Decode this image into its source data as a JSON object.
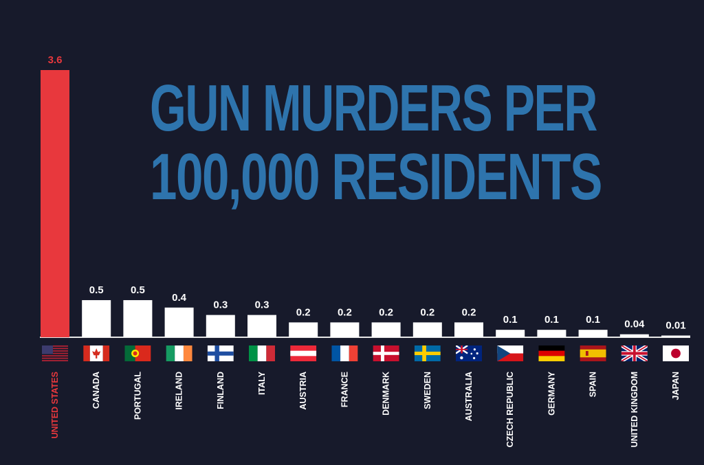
{
  "chart_data": {
    "type": "bar",
    "title": "GUN MURDERS PER 100,000 RESIDENTS",
    "title_lines": [
      "GUN MURDERS PER",
      "100,000 RESIDENTS"
    ],
    "categories": [
      "UNITED STATES",
      "CANADA",
      "PORTUGAL",
      "IRELAND",
      "FINLAND",
      "ITALY",
      "AUSTRIA",
      "FRANCE",
      "DENMARK",
      "SWEDEN",
      "AUSTRALIA",
      "CZECH REPUBLIC",
      "GERMANY",
      "SPAIN",
      "UNITED KINGDOM",
      "JAPAN"
    ],
    "values": [
      3.6,
      0.5,
      0.5,
      0.4,
      0.3,
      0.3,
      0.2,
      0.2,
      0.2,
      0.2,
      0.2,
      0.1,
      0.1,
      0.1,
      0.04,
      0.01
    ],
    "value_labels": [
      "3.6",
      "0.5",
      "0.5",
      "0.4",
      "0.3",
      "0.3",
      "0.2",
      "0.2",
      "0.2",
      "0.2",
      "0.2",
      "0.1",
      "0.1",
      "0.1",
      "0.04",
      "0.01"
    ],
    "flags": [
      "us-flag-icon",
      "canada-flag-icon",
      "portugal-flag-icon",
      "ireland-flag-icon",
      "finland-flag-icon",
      "italy-flag-icon",
      "austria-flag-icon",
      "france-flag-icon",
      "denmark-flag-icon",
      "sweden-flag-icon",
      "australia-flag-icon",
      "czech-republic-flag-icon",
      "germany-flag-icon",
      "spain-flag-icon",
      "united-kingdom-flag-icon",
      "japan-flag-icon"
    ],
    "ylim": [
      0,
      3.6
    ],
    "grid": false,
    "xlabel": "",
    "ylabel": "",
    "colors": {
      "background": "#171a2b",
      "highlight_bar": "#e8383d",
      "bar": "#ffffff",
      "title": "#2e74ad",
      "label": "#ffffff",
      "highlight_label": "#e8383d"
    }
  }
}
